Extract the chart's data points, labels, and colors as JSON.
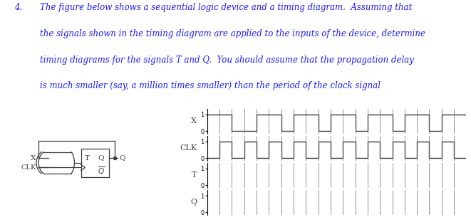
{
  "title_number": "4.",
  "title_text_lines": [
    "The figure below shows a sequential logic device and a timing diagram.  Assuming that",
    "the signals shown in the timing diagram are applied to the inputs of the device, determine",
    "timing diagrams for the signals T and Q.  You should assume that the propagation delay",
    "is much smaller (say, a million times smaller) than the period of the clock signal"
  ],
  "text_color": "#1a1aff",
  "background_color": "#ffffff",
  "signal_color": "#3c3c3c",
  "timing_labels": [
    "X",
    "CLK",
    "T",
    "Q"
  ],
  "x_steps": [
    1,
    1,
    0,
    0,
    1,
    1,
    0,
    1,
    1,
    0,
    1,
    1,
    0,
    1,
    1,
    0,
    1,
    1,
    0,
    1,
    1
  ],
  "clk_steps": [
    0,
    1,
    0,
    1,
    0,
    1,
    0,
    1,
    0,
    1,
    0,
    1,
    0,
    1,
    0,
    1,
    0,
    1,
    0,
    1,
    0
  ],
  "fig_width": 6.61,
  "fig_height": 3.05,
  "dpi": 100
}
